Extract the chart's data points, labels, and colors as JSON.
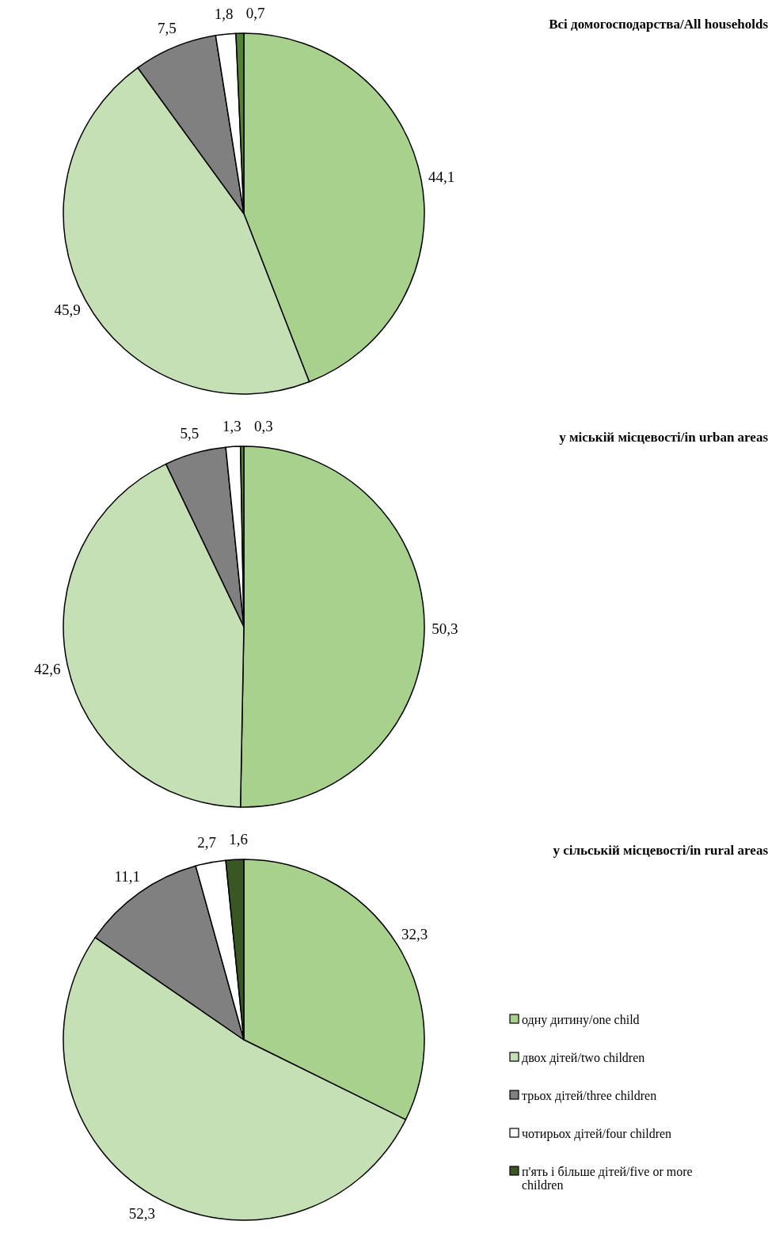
{
  "chart_data": [
    {
      "type": "pie",
      "title": "Всі домогосподарства/All households",
      "categories": [
        null,
        null,
        null,
        null,
        null
      ],
      "values": [
        44.1,
        45.9,
        7.5,
        1.8,
        0.7
      ],
      "value_labels": [
        "44,1",
        "45,9",
        "7,5",
        "1,8",
        "0,7"
      ],
      "colors": [
        "#a9d18e",
        "#c5e0b4",
        "#808080",
        "#ffffff",
        "#548235"
      ],
      "legend": false
    },
    {
      "type": "pie",
      "title": "у міській місцевості/in urban areas",
      "categories": [
        null,
        null,
        null,
        null,
        null
      ],
      "values": [
        50.3,
        42.6,
        5.5,
        1.3,
        0.3
      ],
      "value_labels": [
        "50,3",
        "42,6",
        "5,5",
        "1,3",
        "0,3"
      ],
      "colors": [
        "#a9d18e",
        "#c5e0b4",
        "#808080",
        "#ffffff",
        "#548235"
      ],
      "legend": false
    },
    {
      "type": "pie",
      "title": "у сільській місцевості/in rural areas",
      "categories": [
        "одну дитину/one child",
        "двох дітей/two children",
        "трьох дітей/three children",
        "чотирьох дітей/four children",
        "п'ять і більше дітей/five or more children"
      ],
      "values": [
        32.3,
        52.3,
        11.1,
        2.7,
        1.6
      ],
      "value_labels": [
        "32,3",
        "52,3",
        "11,1",
        "2,7",
        "1,6"
      ],
      "colors": [
        "#a9d18e",
        "#c5e0b4",
        "#808080",
        "#ffffff",
        "#385723"
      ],
      "legend": "right"
    }
  ]
}
